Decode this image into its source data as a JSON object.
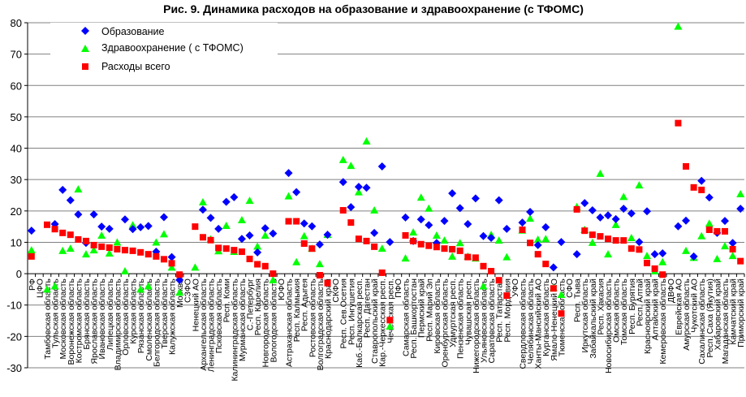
{
  "chart_data": {
    "type": "scatter",
    "title": "Рис. 9. Динамика расходов на образование и здравоохранение (с ТФОМС)",
    "xlabel": "",
    "ylabel": "",
    "ylim": [
      -30,
      80
    ],
    "yticks": [
      80,
      70,
      60,
      50,
      40,
      30,
      20,
      10,
      0,
      -10,
      -20,
      -30
    ],
    "grid": true,
    "legend_position": "top-left",
    "categories": [
      "РФ",
      "ЦФО",
      "Тамбовская область",
      "Тульская область",
      "Московская область",
      "Воронежская область",
      "Костромская область",
      "Брянская область",
      "Ярославская область",
      "Ивановская область",
      "Липецкая область",
      "Владимирская область",
      "Орловская область",
      "Курская область",
      "Рязанская область",
      "Смоленская область",
      "Белгородская область",
      "Тверская область",
      "Калужская область",
      "Москва",
      "СЗФО",
      "Ненецкий АО",
      "Архангельская область",
      "Ленинградская область",
      "Псковская область",
      "Респ. Коми",
      "Калининградская область",
      "Мурманская область",
      "С.-Петербург",
      "Респ. Карелия",
      "Новгородская область",
      "Вологодская область",
      "ЮФО",
      "Астраханская область",
      "Респ. Калмыкия",
      "Респ. Адыгея",
      "Ростовская область",
      "Волгоградская область",
      "Краснодарский край",
      "СКФО",
      "Респ. Сев.Осетия",
      "Респ. Ингушетия",
      "Каб.-Балкарская респ.",
      "Респ. Дагестан",
      "Ставропольский край",
      "Кар.-Черкесская респ.",
      "Чеченская респ.",
      "ПФО",
      "Самарская область",
      "Респ. Башкортостан",
      "Пермский край",
      "Респ. Марий Эл",
      "Кировская область",
      "Оренбургская область",
      "Удмуртская респ.",
      "Пензенская область",
      "Чувашская респ.",
      "Нижегородская область",
      "Ульяновская область",
      "Саратовская область",
      "Респ. Татарстан",
      "Респ. Мордовия",
      "УФО",
      "Свердловская область",
      "Челябинская область",
      "Ханты-Мансийский АО",
      "Курганская область",
      "Ямало-Ненецкий АО",
      "Тюменская область",
      "СФО",
      "Респ. Тыва",
      "Иркутская область",
      "Забайкальский край",
      "Респ. Хакасия",
      "Новосибирская область",
      "Омская область",
      "Томская область",
      "Респ. Бурятия",
      "Респ. Алтай",
      "Красноярский край",
      "Алтайский край",
      "Кемеровская область",
      "ДВФО",
      "Еврейская АО",
      "Амурская область",
      "Чукотский АО",
      "Сахалинская область",
      "Респ. Саха (Якутия)",
      "Хабаровский край",
      "Магаданская область",
      "Камчатский край",
      "Приморский край"
    ],
    "series": [
      {
        "name": "Образование",
        "marker": "diamond",
        "color": "#0000FF",
        "values": [
          13.7,
          null,
          null,
          15.8,
          26.7,
          23.4,
          18.9,
          9.8,
          18.9,
          15.0,
          14.3,
          null,
          17.3,
          14.2,
          14.8,
          15.2,
          7.0,
          18.0,
          5.3,
          -2.0,
          null,
          null,
          20.4,
          17.8,
          14.3,
          22.9,
          24.4,
          11.1,
          12.2,
          6.8,
          14.5,
          12.8,
          null,
          32.1,
          26.0,
          16.0,
          15.1,
          9.3,
          12.4,
          null,
          29.2,
          21.2,
          27.7,
          27.4,
          13.0,
          34.2,
          10.1,
          null,
          17.9,
          10.4,
          17.3,
          15.5,
          9.8,
          16.8,
          25.6,
          20.9,
          15.8,
          24.0,
          12.0,
          11.4,
          23.4,
          14.3,
          null,
          16.3,
          19.7,
          9.1,
          14.8,
          2.0,
          10.1,
          null,
          6.2,
          22.5,
          20.2,
          17.9,
          18.6,
          17.4,
          20.7,
          19.2,
          10.1,
          19.9,
          6.2,
          6.5,
          null,
          15.1,
          16.9,
          5.5,
          29.6,
          24.3,
          13.0,
          16.8,
          9.8,
          20.7
        ]
      },
      {
        "name": "Здравоохранение ( с ТФОМС)",
        "marker": "triangle",
        "color": "#00FF00",
        "values": [
          7.5,
          null,
          -5.0,
          -4.0,
          7.3,
          8.0,
          26.9,
          6.2,
          7.5,
          12.2,
          6.5,
          10.0,
          0.8,
          15.5,
          -5.0,
          -4.0,
          10.0,
          12.6,
          2.0,
          -6.0,
          null,
          2.0,
          22.8,
          11.0,
          7.2,
          15.3,
          7.0,
          17.1,
          23.3,
          8.7,
          12.2,
          -2.0,
          null,
          24.7,
          3.7,
          12.0,
          8.0,
          3.1,
          12.4,
          null,
          36.3,
          34.4,
          26.0,
          42.2,
          20.2,
          8.0,
          -16.8,
          null,
          4.9,
          13.2,
          24.3,
          20.8,
          12.2,
          10.6,
          5.5,
          9.8,
          5.5,
          4.9,
          -4.0,
          12.4,
          10.6,
          5.3,
          null,
          13.8,
          17.6,
          10.9,
          11.1,
          -4.5,
          -6.7,
          null,
          21.3,
          14.0,
          9.9,
          31.9,
          6.2,
          15.6,
          24.5,
          11.4,
          28.2,
          5.7,
          0.8,
          3.7,
          null,
          78.8,
          7.3,
          5.1,
          12.0,
          16.0,
          4.7,
          8.8,
          5.7,
          25.4
        ]
      },
      {
        "name": "Расходы всего",
        "marker": "square",
        "color": "#FF0000",
        "values": [
          5.5,
          null,
          15.6,
          14.2,
          13.0,
          12.4,
          10.9,
          10.4,
          9.1,
          8.6,
          8.3,
          7.8,
          7.5,
          7.3,
          6.8,
          6.2,
          5.5,
          4.6,
          3.3,
          -0.3,
          null,
          15.0,
          11.6,
          10.7,
          8.2,
          8.0,
          7.5,
          7.0,
          4.7,
          3.0,
          2.4,
          0.0,
          null,
          16.7,
          16.7,
          9.6,
          8.0,
          -0.5,
          -3.0,
          null,
          20.2,
          16.3,
          11.1,
          10.4,
          8.6,
          0.3,
          -14.8,
          null,
          12.2,
          10.4,
          9.4,
          8.9,
          8.5,
          8.0,
          7.8,
          7.3,
          5.3,
          5.1,
          2.4,
          0.8,
          -2.1,
          -7.0,
          null,
          14.0,
          9.8,
          6.2,
          3.1,
          -4.7,
          -12.7,
          null,
          20.5,
          13.7,
          12.4,
          11.9,
          11.1,
          10.6,
          10.6,
          8.0,
          7.7,
          3.4,
          1.6,
          -0.3,
          null,
          48.0,
          34.2,
          27.5,
          26.7,
          14.0,
          13.5,
          13.5,
          7.8,
          4.0
        ]
      }
    ]
  }
}
